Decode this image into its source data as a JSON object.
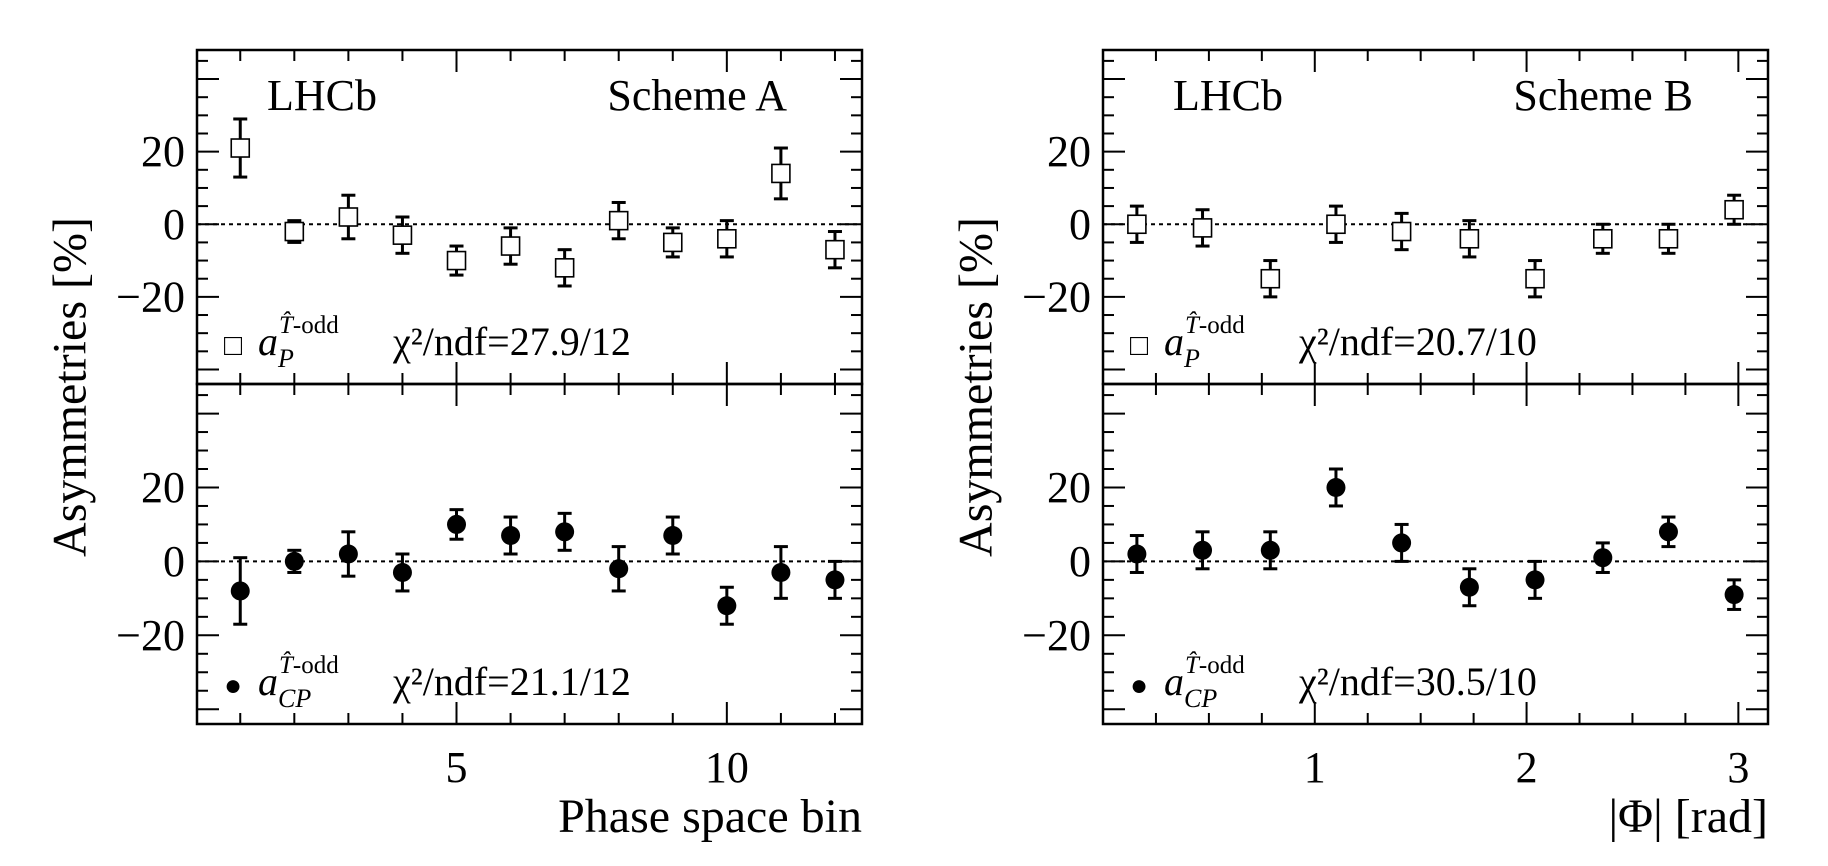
{
  "chart_data": [
    {
      "type": "scatter",
      "id": "schemeA",
      "corner_left": "LHCb",
      "corner_right": "Scheme A",
      "ylabel": "Asymmetries [%]",
      "xlabel": "Phase space bin",
      "xlim": [
        0.2,
        12.5
      ],
      "xticks": [
        5,
        10
      ],
      "ylim": [
        -44,
        48
      ],
      "yticks": [
        20,
        0,
        -20
      ],
      "panels": [
        {
          "id": "aP",
          "marker": "open-square",
          "legend": {
            "symbol": "□",
            "var": "a",
            "sub": "P",
            "sup_that": "T̂",
            "sup_rest": "-odd",
            "chi2": "χ²/ndf=27.9/12"
          },
          "x": [
            1,
            2,
            3,
            4,
            5,
            6,
            7,
            8,
            9,
            10,
            11,
            12
          ],
          "y": [
            21,
            -2,
            2,
            -3,
            -10,
            -6,
            -12,
            1,
            -5,
            -4,
            14,
            -7
          ],
          "err": [
            8,
            3,
            6,
            5,
            4,
            5,
            5,
            5,
            4,
            5,
            7,
            5
          ]
        },
        {
          "id": "aCP",
          "marker": "filled-circle",
          "legend": {
            "symbol": "●",
            "var": "a",
            "sub": "CP",
            "sup_that": "T̂",
            "sup_rest": "-odd",
            "chi2": "χ²/ndf=21.1/12"
          },
          "x": [
            1,
            2,
            3,
            4,
            5,
            6,
            7,
            8,
            9,
            10,
            11,
            12
          ],
          "y": [
            -8,
            0,
            2,
            -3,
            10,
            7,
            8,
            -2,
            7,
            -12,
            -3,
            -5
          ],
          "err": [
            9,
            3,
            6,
            5,
            4,
            5,
            5,
            6,
            5,
            5,
            7,
            5
          ]
        }
      ]
    },
    {
      "type": "scatter",
      "id": "schemeB",
      "corner_left": "LHCb",
      "corner_right": "Scheme B",
      "ylabel": "Asymmetries [%]",
      "xlabel": "|Φ| [rad]",
      "xlim": [
        0.0,
        3.14
      ],
      "xticks": [
        1,
        2,
        3
      ],
      "ylim": [
        -44,
        48
      ],
      "yticks": [
        20,
        0,
        -20
      ],
      "panels": [
        {
          "id": "aP",
          "marker": "open-square",
          "legend": {
            "symbol": "□",
            "var": "a",
            "sub": "P",
            "sup_that": "T̂",
            "sup_rest": "-odd",
            "chi2": "χ²/ndf=20.7/10"
          },
          "x": [
            0.16,
            0.47,
            0.79,
            1.1,
            1.41,
            1.73,
            2.04,
            2.36,
            2.67,
            2.98
          ],
          "y": [
            0,
            -1,
            -15,
            0,
            -2,
            -4,
            -15,
            -4,
            -4,
            4
          ],
          "err": [
            5,
            5,
            5,
            5,
            5,
            5,
            5,
            4,
            4,
            4
          ]
        },
        {
          "id": "aCP",
          "marker": "filled-circle",
          "legend": {
            "symbol": "●",
            "var": "a",
            "sub": "CP",
            "sup_that": "T̂",
            "sup_rest": "-odd",
            "chi2": "χ²/ndf=30.5/10"
          },
          "x": [
            0.16,
            0.47,
            0.79,
            1.1,
            1.41,
            1.73,
            2.04,
            2.36,
            2.67,
            2.98
          ],
          "y": [
            2,
            3,
            3,
            20,
            5,
            -7,
            -5,
            1,
            8,
            -9
          ],
          "err": [
            5,
            5,
            5,
            5,
            5,
            5,
            5,
            4,
            4,
            4
          ]
        }
      ]
    }
  ]
}
